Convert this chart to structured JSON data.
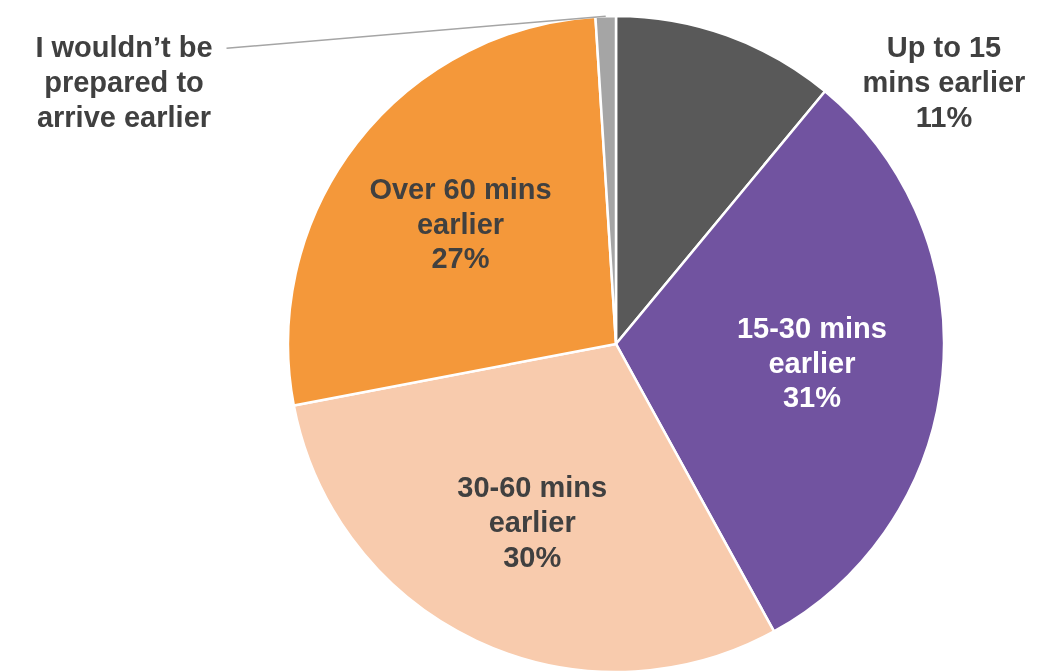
{
  "chart_data": {
    "type": "pie",
    "categories": [
      "Up to 15 mins earlier",
      "15-30 mins earlier",
      "30-60 mins earlier",
      "Over 60 mins earlier",
      "I wouldn’t be prepared to arrive earlier"
    ],
    "values": [
      11,
      31,
      30,
      27,
      1
    ],
    "value_labels": [
      "11%",
      "31%",
      "30%",
      "27%",
      null
    ],
    "colors": [
      "#595959",
      "#7153a0",
      "#f8cbad",
      "#f4983a",
      "#a5a5a5"
    ]
  }
}
